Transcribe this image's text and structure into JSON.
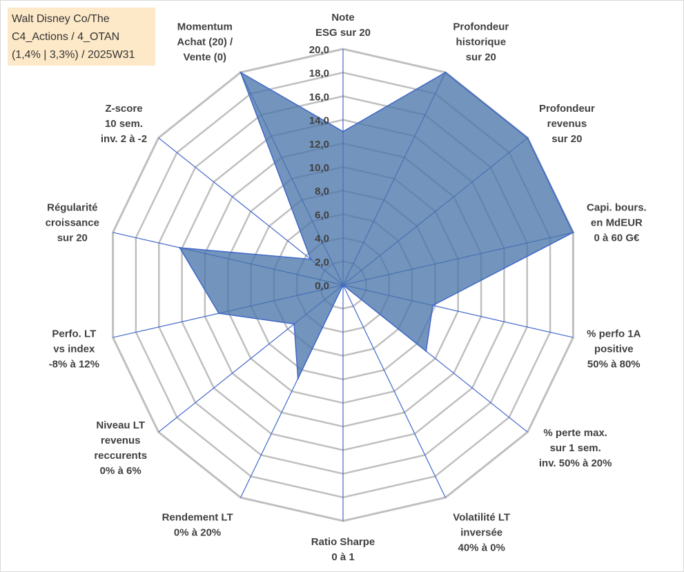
{
  "title_box": {
    "lines": [
      "Walt Disney Co/The",
      "C4_Actions / 4_OTAN",
      "(1,4% | 3,3%) / 2025W31"
    ]
  },
  "colors": {
    "fill": "#4a76ab",
    "stroke": "#3f67c9",
    "grid": "#bfbfbf",
    "spoke": "#3f67c9",
    "text": "#404040",
    "title_bg": "#fde9c8"
  },
  "chart_data": {
    "type": "radar",
    "rmin": 0,
    "rmax": 20,
    "tick_step": 2,
    "tick_labels": [
      "0,0",
      "2,0",
      "4,0",
      "6,0",
      "8,0",
      "10,0",
      "12,0",
      "14,0",
      "16,0",
      "18,0",
      "20,0"
    ],
    "axes": [
      {
        "label": [
          "Note",
          "ESG sur 20"
        ],
        "value": 13
      },
      {
        "label": [
          "Profondeur",
          "historique",
          "sur 20"
        ],
        "value": 20
      },
      {
        "label": [
          "Profondeur",
          "revenus",
          "sur 20"
        ],
        "value": 20
      },
      {
        "label": [
          "Capi. bours.",
          "en MdEUR",
          "0 à 60 G€"
        ],
        "value": 20
      },
      {
        "label": [
          "% perfo 1A",
          "positive",
          "50% à 80%"
        ],
        "value": 7.8
      },
      {
        "label": [
          "% perte max.",
          "sur 1 sem.",
          "inv. 50% à 20%"
        ],
        "value": 9
      },
      {
        "label": [
          "Volatilité LT",
          "inversée",
          "40% à 0%"
        ],
        "value": 0
      },
      {
        "label": [
          "Ratio Sharpe",
          "0 à 1"
        ],
        "value": 0
      },
      {
        "label": [
          "Rendement LT",
          "0% à 20%"
        ],
        "value": 8.8
      },
      {
        "label": [
          "Niveau LT",
          "revenus",
          "reccurents",
          "0% à 6%"
        ],
        "value": 5.3
      },
      {
        "label": [
          "Perfo. LT",
          "vs index",
          "-8% à 12%"
        ],
        "value": 10.8
      },
      {
        "label": [
          "Régularité",
          "croissance",
          "sur 20"
        ],
        "value": 14.2
      },
      {
        "label": [
          "Z-score",
          "10 sem.",
          "inv. 2 à -2"
        ],
        "value": 3.5
      },
      {
        "label": [
          "Momentum",
          "Achat (20) /",
          "Vente (0)"
        ],
        "value": 20
      }
    ]
  }
}
